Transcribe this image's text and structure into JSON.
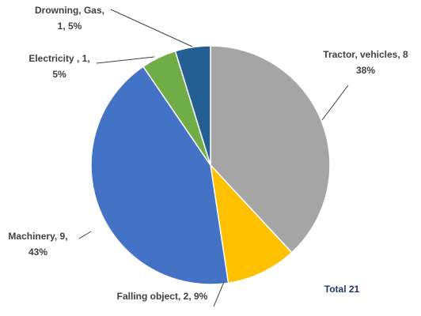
{
  "chart_data": {
    "type": "pie",
    "categories": [
      "Tractor, vehicles",
      "Falling object",
      "Machinery",
      "Electricity",
      "Drowning, Gas"
    ],
    "values": [
      8,
      2,
      9,
      1,
      1
    ],
    "value_labels": [
      [
        "Tractor, vehicles, 8",
        "38%"
      ],
      [
        "Falling object, 2, 9%"
      ],
      [
        "Machinery, 9,",
        "43%"
      ],
      [
        "Electricity , 1,",
        "5%"
      ],
      [
        "Drowning, Gas,",
        "1, 5%"
      ]
    ],
    "colors": [
      "#a5a5a5",
      "#ffc000",
      "#4472c4",
      "#70ad47",
      "#255e91"
    ],
    "annotation": "Total 21"
  }
}
